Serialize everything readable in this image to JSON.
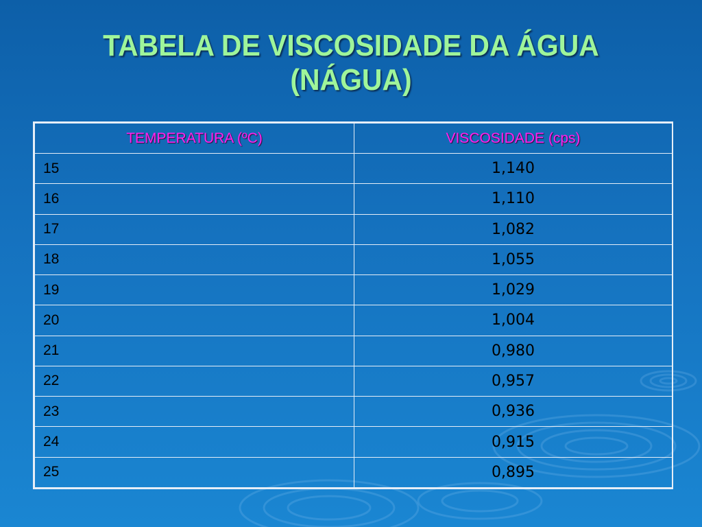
{
  "slide": {
    "title_line1": "TABELA DE VISCOSIDADE DA ÁGUA",
    "title_line2": "(NÁGUA)"
  },
  "table": {
    "headers": [
      "TEMPERATURA (ºC)",
      "VISCOSIDADE (cps)"
    ],
    "rows": [
      [
        "15",
        "1,140"
      ],
      [
        "16",
        "1,110"
      ],
      [
        "17",
        "1,082"
      ],
      [
        "18",
        "1,055"
      ],
      [
        "19",
        "1,029"
      ],
      [
        "20",
        "1,004"
      ],
      [
        "21",
        "0,980"
      ],
      [
        "22",
        "0,957"
      ],
      [
        "23",
        "0,936"
      ],
      [
        "24",
        "0,915"
      ],
      [
        "25",
        "0,895"
      ]
    ]
  },
  "colors": {
    "background": "#1572bf",
    "title": "#9ff59a",
    "header_text": "#ff22ee",
    "cell_text": "#000000",
    "grid": "#e6eef7"
  },
  "decoration": {
    "background_motif": "water-ripples"
  }
}
